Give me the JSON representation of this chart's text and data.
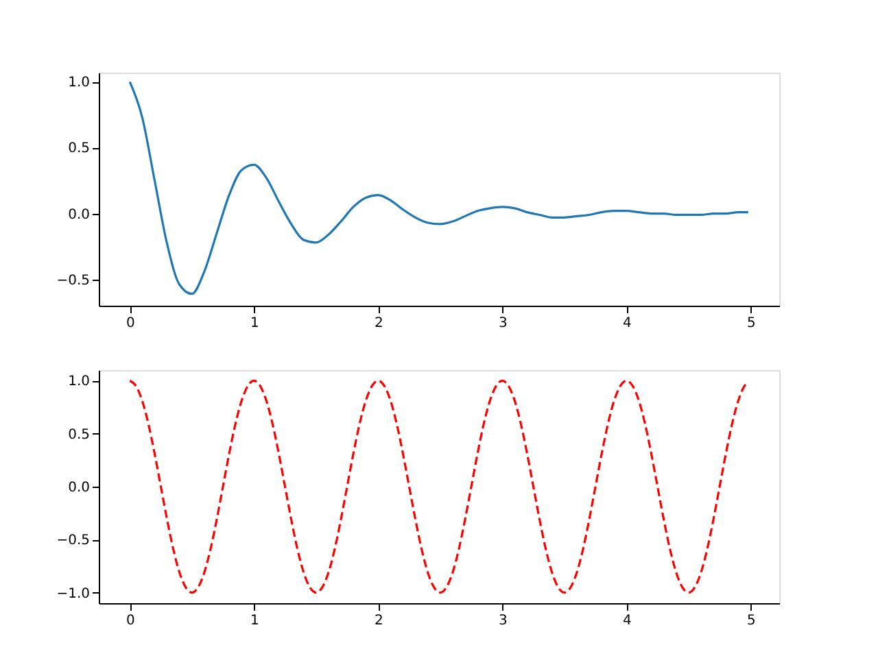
{
  "chart_data": [
    {
      "type": "line",
      "x": [
        0,
        0.1,
        0.2,
        0.3,
        0.4,
        0.5,
        0.6,
        0.7,
        0.8,
        0.9,
        1,
        1.1,
        1.2,
        1.3,
        1.4,
        1.5,
        1.6,
        1.7,
        1.8,
        1.9,
        2,
        2.1,
        2.2,
        2.3,
        2.4,
        2.5,
        2.6,
        2.7,
        2.8,
        2.9,
        3,
        3.1,
        3.2,
        3.3,
        3.4,
        3.5,
        3.6,
        3.7,
        3.8,
        3.9,
        4,
        4.1,
        4.2,
        4.3,
        4.4,
        4.5,
        4.6,
        4.7,
        4.8,
        4.9,
        4.98
      ],
      "series": [
        {
          "color": "#1f77b4",
          "line_style": "solid",
          "values": [
            1.0,
            0.73,
            0.25,
            -0.23,
            -0.54,
            -0.61,
            -0.44,
            -0.15,
            0.14,
            0.33,
            0.37,
            0.27,
            0.09,
            -0.08,
            -0.2,
            -0.22,
            -0.16,
            -0.06,
            0.05,
            0.12,
            0.14,
            0.1,
            0.03,
            -0.03,
            -0.07,
            -0.08,
            -0.06,
            -0.02,
            0.02,
            0.04,
            0.05,
            0.04,
            0.01,
            -0.01,
            -0.03,
            -0.03,
            -0.02,
            -0.01,
            0.01,
            0.02,
            0.02,
            0.01,
            0.0,
            0.0,
            -0.01,
            -0.01,
            -0.01,
            0.0,
            0.0,
            0.01,
            0.01
          ]
        }
      ],
      "xlim": [
        -0.25,
        5.23
      ],
      "ylim": [
        -0.7,
        1.07
      ],
      "xticks": [
        0,
        1,
        2,
        3,
        4,
        5
      ],
      "yticks": [
        {
          "value": -0.5,
          "label": "−0.5"
        },
        {
          "value": 0,
          "label": "0.0"
        },
        {
          "value": 0.5,
          "label": "0.5"
        },
        {
          "value": 1,
          "label": "1.0"
        }
      ]
    },
    {
      "type": "line",
      "x": [
        0,
        0.05,
        0.1,
        0.15,
        0.2,
        0.25,
        0.3,
        0.35,
        0.4,
        0.45,
        0.5,
        0.55,
        0.6,
        0.65,
        0.7,
        0.75,
        0.8,
        0.85,
        0.9,
        0.95,
        1,
        1.05,
        1.1,
        1.15,
        1.2,
        1.25,
        1.3,
        1.35,
        1.4,
        1.45,
        1.5,
        1.55,
        1.6,
        1.65,
        1.7,
        1.75,
        1.8,
        1.85,
        1.9,
        1.95,
        2,
        2.05,
        2.1,
        2.15,
        2.2,
        2.25,
        2.3,
        2.35,
        2.4,
        2.45,
        2.5,
        2.55,
        2.6,
        2.65,
        2.7,
        2.75,
        2.8,
        2.85,
        2.9,
        2.95,
        3,
        3.05,
        3.1,
        3.15,
        3.2,
        3.25,
        3.3,
        3.35,
        3.4,
        3.45,
        3.5,
        3.55,
        3.6,
        3.65,
        3.7,
        3.75,
        3.8,
        3.85,
        3.9,
        3.95,
        4,
        4.05,
        4.1,
        4.15,
        4.2,
        4.25,
        4.3,
        4.35,
        4.4,
        4.45,
        4.5,
        4.55,
        4.6,
        4.65,
        4.7,
        4.75,
        4.8,
        4.85,
        4.9,
        4.95,
        4.98
      ],
      "series": [
        {
          "color": "#ff0000",
          "line_style": "dashed",
          "values": [
            1,
            0.95,
            0.81,
            0.59,
            0.31,
            0,
            -0.31,
            -0.59,
            -0.81,
            -0.95,
            -1,
            -0.95,
            -0.81,
            -0.59,
            -0.31,
            0,
            0.31,
            0.59,
            0.81,
            0.95,
            1,
            0.95,
            0.81,
            0.59,
            0.31,
            0,
            -0.31,
            -0.59,
            -0.81,
            -0.95,
            -1,
            -0.95,
            -0.81,
            -0.59,
            -0.31,
            0,
            0.31,
            0.59,
            0.81,
            0.95,
            1,
            0.95,
            0.81,
            0.59,
            0.31,
            0,
            -0.31,
            -0.59,
            -0.81,
            -0.95,
            -1,
            -0.95,
            -0.81,
            -0.59,
            -0.31,
            0,
            0.31,
            0.59,
            0.81,
            0.95,
            1,
            0.95,
            0.81,
            0.59,
            0.31,
            0,
            -0.31,
            -0.59,
            -0.81,
            -0.95,
            -1,
            -0.95,
            -0.81,
            -0.59,
            -0.31,
            0,
            0.31,
            0.59,
            0.81,
            0.95,
            1,
            0.95,
            0.81,
            0.59,
            0.31,
            0,
            -0.31,
            -0.59,
            -0.81,
            -0.95,
            -1,
            -0.95,
            -0.81,
            -0.59,
            -0.31,
            0,
            0.31,
            0.59,
            0.81,
            0.95,
            0.99
          ]
        }
      ],
      "xlim": [
        -0.25,
        5.23
      ],
      "ylim": [
        -1.1,
        1.1
      ],
      "xticks": [
        0,
        1,
        2,
        3,
        4,
        5
      ],
      "yticks": [
        {
          "value": -1,
          "label": "−1.0"
        },
        {
          "value": -0.5,
          "label": "−0.5"
        },
        {
          "value": 0,
          "label": "0.0"
        },
        {
          "value": 0.5,
          "label": "0.5"
        },
        {
          "value": 1,
          "label": "1.0"
        }
      ]
    }
  ]
}
